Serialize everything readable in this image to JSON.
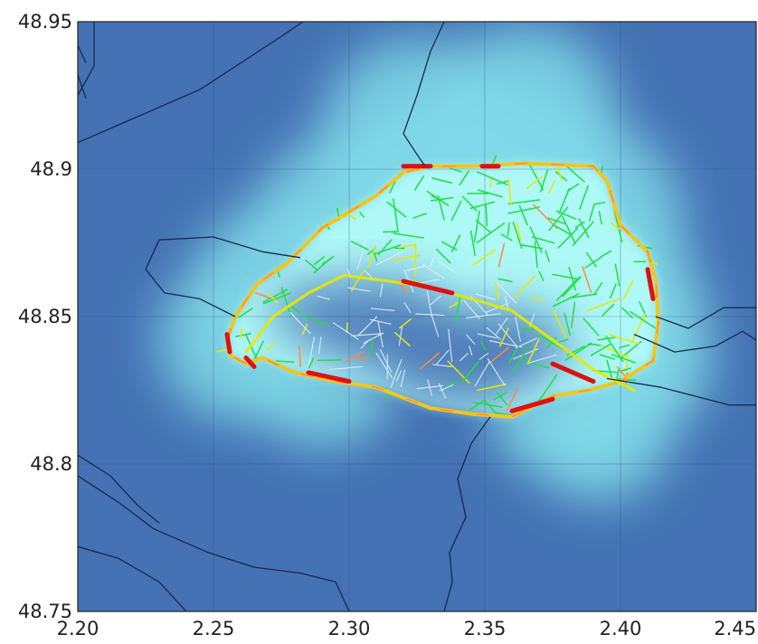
{
  "chart_data": {
    "type": "heatmap",
    "title": "",
    "xlabel": "",
    "ylabel": "",
    "xlim": [
      2.2,
      2.45
    ],
    "ylim": [
      48.75,
      48.95
    ],
    "grid": true,
    "x_ticks": [
      "2.20",
      "2.25",
      "2.30",
      "2.35",
      "2.40",
      "2.45"
    ],
    "y_ticks": [
      "48.75",
      "48.8",
      "48.85",
      "48.9",
      "48.95"
    ],
    "x_tick_values": [
      2.2,
      2.25,
      2.3,
      2.35,
      2.4,
      2.45
    ],
    "y_tick_values": [
      48.75,
      48.8,
      48.85,
      48.9,
      48.95
    ],
    "colors": {
      "background": "#4472b4",
      "heat_high": "#b4fcf8",
      "heat_mid": "#7fd8e6",
      "boundary": "#1a2a4a",
      "road_low": "#22dd44",
      "road_mid": "#e8e800",
      "road_high": "#dd1111",
      "road_unobserved": "#dfeeff"
    },
    "paris_ring": [
      [
        2.255,
        48.842
      ],
      [
        2.258,
        48.85
      ],
      [
        2.266,
        48.861
      ],
      [
        2.277,
        48.868
      ],
      [
        2.29,
        48.88
      ],
      [
        2.31,
        48.891
      ],
      [
        2.32,
        48.899
      ],
      [
        2.33,
        48.901
      ],
      [
        2.345,
        48.901
      ],
      [
        2.365,
        48.902
      ],
      [
        2.39,
        48.901
      ],
      [
        2.395,
        48.896
      ],
      [
        2.4,
        48.881
      ],
      [
        2.41,
        48.872
      ],
      [
        2.413,
        48.862
      ],
      [
        2.414,
        48.848
      ],
      [
        2.412,
        48.835
      ],
      [
        2.4,
        48.828
      ],
      [
        2.388,
        48.825
      ],
      [
        2.375,
        48.823
      ],
      [
        2.36,
        48.816
      ],
      [
        2.345,
        48.817
      ],
      [
        2.33,
        48.819
      ],
      [
        2.31,
        48.826
      ],
      [
        2.295,
        48.828
      ],
      [
        2.28,
        48.831
      ],
      [
        2.268,
        48.836
      ],
      [
        2.262,
        48.834
      ],
      [
        2.256,
        48.837
      ]
    ],
    "seine_path": [
      [
        2.262,
        48.838
      ],
      [
        2.272,
        48.85
      ],
      [
        2.285,
        48.858
      ],
      [
        2.298,
        48.864
      ],
      [
        2.315,
        48.862
      ],
      [
        2.33,
        48.86
      ],
      [
        2.345,
        48.856
      ],
      [
        2.36,
        48.852
      ],
      [
        2.375,
        48.842
      ],
      [
        2.39,
        48.832
      ],
      [
        2.405,
        48.825
      ]
    ],
    "heat_field": [
      {
        "lon": 2.345,
        "lat": 48.88,
        "intensity": 1.0
      },
      {
        "lon": 2.325,
        "lat": 48.912,
        "intensity": 0.9
      },
      {
        "lon": 2.365,
        "lat": 48.918,
        "intensity": 0.85
      },
      {
        "lon": 2.385,
        "lat": 48.882,
        "intensity": 1.0
      },
      {
        "lon": 2.395,
        "lat": 48.85,
        "intensity": 0.95
      },
      {
        "lon": 2.3,
        "lat": 48.88,
        "intensity": 0.9
      },
      {
        "lon": 2.275,
        "lat": 48.86,
        "intensity": 0.8
      },
      {
        "lon": 2.26,
        "lat": 48.842,
        "intensity": 0.75
      },
      {
        "lon": 2.29,
        "lat": 48.832,
        "intensity": 0.7
      },
      {
        "lon": 2.38,
        "lat": 48.823,
        "intensity": 0.75
      },
      {
        "lon": 2.392,
        "lat": 48.812,
        "intensity": 0.65
      },
      {
        "lon": 2.405,
        "lat": 48.835,
        "intensity": 0.7
      },
      {
        "lon": 2.358,
        "lat": 48.895,
        "intensity": 1.0
      },
      {
        "lon": 2.33,
        "lat": 48.888,
        "intensity": 1.0
      }
    ],
    "dark_spots": [
      {
        "lon": 2.31,
        "lat": 48.848,
        "intensity": 0.9
      },
      {
        "lon": 2.34,
        "lat": 48.836,
        "intensity": 0.95
      },
      {
        "lon": 2.36,
        "lat": 48.84,
        "intensity": 0.7
      },
      {
        "lon": 2.285,
        "lat": 48.852,
        "intensity": 0.5
      }
    ],
    "hot_segments": [
      [
        [
          2.32,
          48.901
        ],
        [
          2.33,
          48.901
        ]
      ],
      [
        [
          2.349,
          48.901
        ],
        [
          2.355,
          48.901
        ]
      ],
      [
        [
          2.41,
          48.866
        ],
        [
          2.412,
          48.856
        ]
      ],
      [
        [
          2.32,
          48.862
        ],
        [
          2.338,
          48.858
        ]
      ],
      [
        [
          2.375,
          48.834
        ],
        [
          2.39,
          48.828
        ]
      ],
      [
        [
          2.255,
          48.844
        ],
        [
          2.256,
          48.838
        ]
      ],
      [
        [
          2.262,
          48.836
        ],
        [
          2.265,
          48.833
        ]
      ],
      [
        [
          2.36,
          48.818
        ],
        [
          2.375,
          48.822
        ]
      ],
      [
        [
          2.285,
          48.831
        ],
        [
          2.3,
          48.828
        ]
      ]
    ],
    "boundaries": [
      [
        [
          2.2,
          48.909
        ],
        [
          2.245,
          48.927
        ],
        [
          2.275,
          48.945
        ],
        [
          2.283,
          48.95
        ]
      ],
      [
        [
          2.2,
          48.925
        ],
        [
          2.206,
          48.935
        ],
        [
          2.206,
          48.95
        ]
      ],
      [
        [
          2.2,
          48.942
        ],
        [
          2.203,
          48.936
        ]
      ],
      [
        [
          2.2,
          48.932
        ],
        [
          2.203,
          48.924
        ]
      ],
      [
        [
          2.335,
          48.95
        ],
        [
          2.33,
          48.94
        ],
        [
          2.325,
          48.925
        ],
        [
          2.32,
          48.912
        ],
        [
          2.325,
          48.905
        ],
        [
          2.328,
          48.901
        ]
      ],
      [
        [
          2.258,
          48.85
        ],
        [
          2.245,
          48.856
        ],
        [
          2.232,
          48.858
        ],
        [
          2.225,
          48.866
        ],
        [
          2.23,
          48.876
        ],
        [
          2.25,
          48.877
        ],
        [
          2.268,
          48.872
        ],
        [
          2.282,
          48.87
        ]
      ],
      [
        [
          2.395,
          48.829
        ],
        [
          2.415,
          48.826
        ],
        [
          2.44,
          48.82
        ],
        [
          2.45,
          48.82
        ]
      ],
      [
        [
          2.405,
          48.844
        ],
        [
          2.42,
          48.838
        ],
        [
          2.435,
          48.84
        ],
        [
          2.445,
          48.845
        ],
        [
          2.45,
          48.842
        ]
      ],
      [
        [
          2.413,
          48.85
        ],
        [
          2.425,
          48.846
        ],
        [
          2.438,
          48.853
        ],
        [
          2.45,
          48.853
        ]
      ],
      [
        [
          2.352,
          48.816
        ],
        [
          2.345,
          48.807
        ],
        [
          2.34,
          48.795
        ],
        [
          2.343,
          48.782
        ],
        [
          2.337,
          48.77
        ],
        [
          2.338,
          48.76
        ],
        [
          2.335,
          48.75
        ]
      ],
      [
        [
          2.3,
          48.75
        ],
        [
          2.295,
          48.76
        ],
        [
          2.282,
          48.763
        ],
        [
          2.265,
          48.765
        ],
        [
          2.248,
          48.77
        ],
        [
          2.228,
          48.778
        ],
        [
          2.215,
          48.787
        ],
        [
          2.205,
          48.793
        ],
        [
          2.2,
          48.796
        ]
      ],
      [
        [
          2.2,
          48.772
        ],
        [
          2.215,
          48.768
        ],
        [
          2.23,
          48.76
        ],
        [
          2.24,
          48.75
        ]
      ],
      [
        [
          2.2,
          48.803
        ],
        [
          2.212,
          48.796
        ],
        [
          2.222,
          48.786
        ],
        [
          2.23,
          48.78
        ]
      ]
    ]
  }
}
